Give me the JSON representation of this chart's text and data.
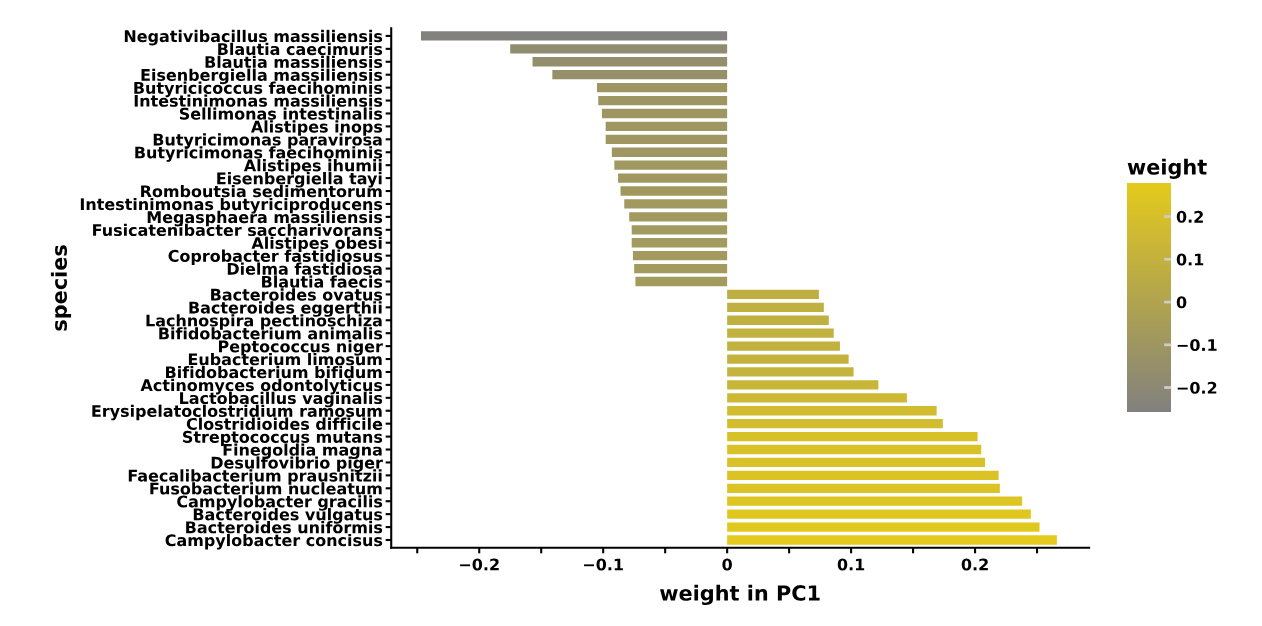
{
  "chart_data": {
    "type": "bar",
    "orientation": "horizontal",
    "xlabel": "weight in PC1",
    "ylabel": "species",
    "clabel": "weight",
    "categories": [
      "Negativibacillus massiliensis",
      "Blautia caecimuris",
      "Blautia massiliensis",
      "Eisenbergiella massiliensis",
      "Butyricicoccus faecihominis",
      "Intestinimonas massiliensis",
      "Sellimonas intestinalis",
      "Alistipes inops",
      "Butyricimonas paravirosa",
      "Butyricimonas faecihominis",
      "Alistipes ihumii",
      "Eisenbergiella tayi",
      "Romboutsia sedimentorum",
      "Intestinimonas butyriciproducens",
      "Megasphaera massiliensis",
      "Fusicatenibacter saccharivorans",
      "Alistipes obesi",
      "Coprobacter fastidiosus",
      "Dielma fastidiosa",
      "Blautia faecis",
      "Bacteroides ovatus",
      "Bacteroides eggerthii",
      "Lachnospira pectinoschiza",
      "Bifidobacterium animalis",
      "Peptococcus niger",
      "Eubacterium limosum",
      "Bifidobacterium bifidum",
      "Actinomyces odontolyticus",
      "Lactobacillus vaginalis",
      "Erysipelatoclostridium ramosum",
      "Clostridioides difficile",
      "Streptococcus mutans",
      "Finegoldia magna",
      "Desulfovibrio piger",
      "Faecalibacterium prausnitzii",
      "Fusobacterium nucleatum",
      "Campylobacter gracilis",
      "Bacteroides vulgatus",
      "Bacteroides uniformis",
      "Campylobacter concisus"
    ],
    "values": [
      -0.247,
      -0.175,
      -0.157,
      -0.141,
      -0.105,
      -0.104,
      -0.101,
      -0.098,
      -0.098,
      -0.093,
      -0.091,
      -0.088,
      -0.086,
      -0.083,
      -0.079,
      -0.077,
      -0.077,
      -0.076,
      -0.075,
      -0.074,
      0.074,
      0.078,
      0.082,
      0.086,
      0.091,
      0.098,
      0.102,
      0.122,
      0.145,
      0.169,
      0.174,
      0.202,
      0.205,
      0.208,
      0.219,
      0.22,
      0.238,
      0.245,
      0.252,
      0.266
    ],
    "colors": [
      "#82817e",
      "#908c70",
      "#938e6d",
      "#96906a",
      "#9d9663",
      "#9d9663",
      "#9e9662",
      "#9e9762",
      "#9e9762",
      "#9f9761",
      "#a09860",
      "#a09860",
      "#a1985f",
      "#a1995f",
      "#a2995e",
      "#a29a5e",
      "#a29a5e",
      "#a29a5e",
      "#a39a5d",
      "#a39a5d",
      "#bfaf41",
      "#c0b040",
      "#c0b040",
      "#c1b13f",
      "#c2b13e",
      "#c4b23c",
      "#c4b33c",
      "#c8b638",
      "#cdb934",
      "#d1bc2f",
      "#d2bd2e",
      "#d7c129",
      "#d8c228",
      "#d9c227",
      "#dbc325",
      "#dbc325",
      "#dec622",
      "#e0c720",
      "#e1c81f",
      "#e4ca1c"
    ],
    "xlim": [
      -0.271,
      0.292
    ],
    "xticks": [
      {
        "value": -0.25,
        "label": null
      },
      {
        "value": -0.2,
        "label": "−0.2"
      },
      {
        "value": -0.15,
        "label": null
      },
      {
        "value": -0.1,
        "label": "−0.1"
      },
      {
        "value": -0.05,
        "label": null
      },
      0,
      {
        "value": 0.05,
        "label": null
      },
      0.1,
      {
        "value": 0.15,
        "label": null
      },
      0.2,
      {
        "value": 0.25,
        "label": null
      }
    ],
    "clim": [
      -0.257,
      0.279
    ],
    "cticks": [
      {
        "value": -0.2,
        "label": "−0.2"
      },
      {
        "value": -0.1,
        "label": "−0.1"
      },
      0,
      0.1,
      0.2
    ],
    "grid": false,
    "legend": false
  }
}
